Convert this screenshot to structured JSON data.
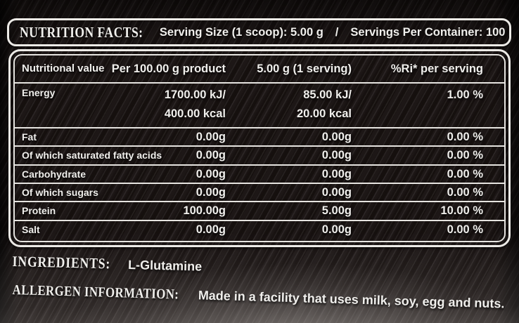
{
  "label_header": {
    "title": "NUTRITION FACTS:",
    "serving_size": "Serving Size (1 scoop): 5.00 g",
    "divider": "/",
    "servings_per_container": "Servings Per Container: 100"
  },
  "table": {
    "columns": [
      "Nutritional value",
      "Per 100.00 g product",
      "5.00 g (1 serving)",
      "%Ri* per serving"
    ],
    "rows": [
      {
        "label": "Energy",
        "per_100g": [
          "1700.00 kJ/",
          "400.00 kcal"
        ],
        "per_serving": [
          "85.00 kJ/",
          "20.00 kcal"
        ],
        "ri_per_serving": "1.00 %"
      },
      {
        "label": "Fat",
        "per_100g": "0.00g",
        "per_serving": "0.00g",
        "ri_per_serving": "0.00 %"
      },
      {
        "label": "Of which saturated fatty acids",
        "per_100g": "0.00g",
        "per_serving": "0.00g",
        "ri_per_serving": "0.00 %"
      },
      {
        "label": "Carbohydrate",
        "per_100g": "0.00g",
        "per_serving": "0.00g",
        "ri_per_serving": "0.00 %"
      },
      {
        "label": "Of which sugars",
        "per_100g": "0.00g",
        "per_serving": "0.00g",
        "ri_per_serving": "0.00 %"
      },
      {
        "label": "Protein",
        "per_100g": "100.00g",
        "per_serving": "5.00g",
        "ri_per_serving": "10.00 %"
      },
      {
        "label": "Salt",
        "per_100g": "0.00g",
        "per_serving": "0.00g",
        "ri_per_serving": "0.00 %"
      }
    ]
  },
  "footer": {
    "ingredients_label": "INGREDIENTS:",
    "ingredients": "L-Glutamine",
    "allergen_label": "ALLERGEN INFORMATION:",
    "allergen_info": "Made in a facility that uses milk, soy, egg and nuts."
  },
  "colors": {
    "background": "#16100f",
    "text": "#f0efec",
    "border": "#eceae6"
  }
}
